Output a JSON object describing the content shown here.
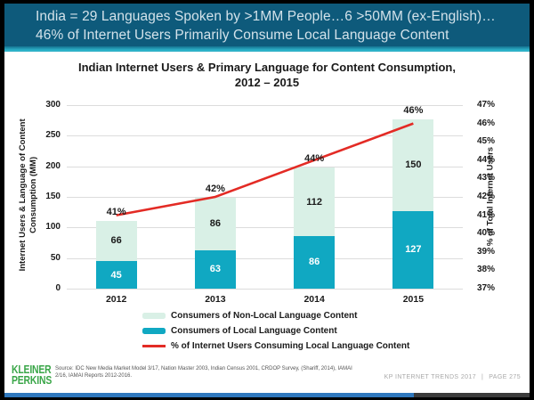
{
  "video_frame": {
    "progress_percent": 78
  },
  "header": {
    "line1": "India = 29 Languages Spoken by >1MM People…6 >50MM (ex-English)…",
    "line2": "46% of Internet Users Primarily Consume Local Language Content"
  },
  "chart_data": {
    "type": "bar",
    "title": "Indian Internet Users & Primary Language for Content Consumption, 2012 – 2015",
    "title_line1": "Indian Internet Users & Primary Language for Content Consumption,",
    "title_line2": "2012 – 2015",
    "categories": [
      "2012",
      "2013",
      "2014",
      "2015"
    ],
    "series": [
      {
        "name": "Consumers of Non-Local Language Content",
        "role": "bar-top-segment",
        "color": "#D9F0E6",
        "label_color": "#1a1a1a",
        "values": [
          66,
          86,
          112,
          150
        ]
      },
      {
        "name": "Consumers of Local Language Content",
        "role": "bar-bottom-segment",
        "color": "#10A8C2",
        "label_color": "#ffffff",
        "values": [
          45,
          63,
          86,
          127
        ]
      },
      {
        "name": "% of Internet Users Consuming Local Language Content",
        "role": "line",
        "color": "#E32B25",
        "values": [
          41,
          42,
          44,
          46
        ],
        "labels": [
          "41%",
          "42%",
          "44%",
          "46%"
        ]
      }
    ],
    "stacked_totals": [
      111,
      149,
      198,
      277
    ],
    "left_axis": {
      "label": "Internet Users & Language of Content Consumption (MM)",
      "min": 0,
      "max": 300,
      "ticks": [
        300,
        250,
        200,
        150,
        100,
        50,
        0
      ]
    },
    "right_axis": {
      "label": "% of Total Internet Users",
      "min": 37,
      "max": 47,
      "ticks": [
        "47%",
        "46%",
        "45%",
        "44%",
        "43%",
        "42%",
        "41%",
        "40%",
        "39%",
        "38%",
        "37%"
      ]
    },
    "grid": true,
    "legend_position": "bottom"
  },
  "footer": {
    "logo_line1": "KLEINER",
    "logo_line2": "PERKINS",
    "source": "Source: IDC New Media Market Model 3/17, Nation Master 2003, Indian Census 2001, CRDOP Survey, (Shariff, 2014), IAMAI 2/16, IAMAI Reports 2012-2016.",
    "report_label": "KP INTERNET TRENDS 2017",
    "separator": "|",
    "page_label": "PAGE 275"
  },
  "colors": {
    "header_bg": "#0E5A7B",
    "accent_teal": "#2FB7CD",
    "bar_local": "#10A8C2",
    "bar_nonlocal": "#D9F0E6",
    "line_red": "#E32B25",
    "logo_green": "#3AA648",
    "progress_blue": "#2F78BE"
  }
}
